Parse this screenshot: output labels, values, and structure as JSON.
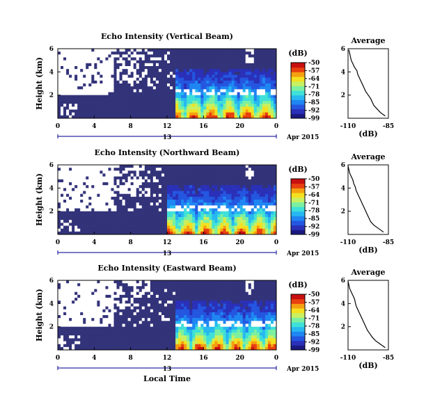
{
  "figure": {
    "x_axis_title": "Local Time",
    "date_label": "Apr 2015",
    "date_day": "13",
    "colorbar_unit": "(dB)"
  },
  "colors": {
    "background": "#ffffff",
    "no_echo": "#33337a",
    "colormap": [
      "#1a1a80",
      "#2a30b8",
      "#2456e0",
      "#1f86f2",
      "#27b8f0",
      "#3fe0d8",
      "#7cf0a0",
      "#c8f060",
      "#f4e020",
      "#f4a010",
      "#e84010",
      "#c81010"
    ]
  },
  "chart_data": [
    {
      "type": "heatmap",
      "title": "Echo Intensity (Vertical Beam)",
      "ylabel": "Height (km)",
      "xlabel": "",
      "x_ticks": [
        "0",
        "4",
        "8",
        "12",
        "16",
        "20",
        "0"
      ],
      "x_range_hours": [
        0,
        24
      ],
      "y_ticks": [
        "6",
        "4",
        "2"
      ],
      "y_range_km": [
        0,
        6
      ],
      "colorbar_ticks": [
        "-50",
        "-57",
        "-64",
        "-71",
        "-78",
        "-85",
        "-92",
        "-99"
      ],
      "colorbar_range_db": [
        -99,
        -50
      ],
      "description": "clear (white) gaps at upper heights before ~13 LT; enhanced echo (green/yellow) below 2 km after 13 LT",
      "profile": {
        "title": "Average",
        "xlabel": "(dB)",
        "x_ticks": [
          "-110",
          "-85"
        ],
        "x_range_db": [
          -110,
          -85
        ],
        "y_ticks": [
          "6",
          "4",
          "2"
        ],
        "y_range_km": [
          0,
          6
        ],
        "height_km": [
          0.2,
          0.5,
          0.8,
          1.1,
          1.4,
          1.7,
          2.0,
          2.3,
          2.6,
          2.9,
          3.2,
          3.5,
          3.8,
          4.1,
          4.4,
          4.7,
          5.0,
          5.3,
          5.6,
          5.9
        ],
        "value_db": [
          -87,
          -90,
          -92,
          -94,
          -95,
          -96,
          -97.5,
          -99,
          -100,
          -101,
          -102,
          -103,
          -104,
          -104.5,
          -106,
          -107,
          -108,
          -108.5,
          -109,
          -109.5
        ]
      }
    },
    {
      "type": "heatmap",
      "title": "Echo Intensity (Northward Beam)",
      "ylabel": "Height (km)",
      "xlabel": "",
      "x_ticks": [
        "0",
        "4",
        "8",
        "12",
        "16",
        "20",
        "0"
      ],
      "x_range_hours": [
        0,
        24
      ],
      "y_ticks": [
        "6",
        "4",
        "2"
      ],
      "y_range_km": [
        0,
        6
      ],
      "colorbar_ticks": [
        "-50",
        "-57",
        "-64",
        "-71",
        "-78",
        "-85",
        "-92",
        "-99"
      ],
      "colorbar_range_db": [
        -99,
        -50
      ],
      "description": "clear (white) gaps at upper heights before ~12 LT; enhanced echo (green/yellow) below 2 km after 12 LT",
      "profile": {
        "title": "Average",
        "xlabel": "(dB)",
        "x_ticks": [
          "-110",
          "-85"
        ],
        "x_range_db": [
          -110,
          -85
        ],
        "y_ticks": [
          "6",
          "4",
          "2"
        ],
        "y_range_km": [
          0,
          6
        ],
        "height_km": [
          0.2,
          0.5,
          0.8,
          1.1,
          1.4,
          1.7,
          2.0,
          2.3,
          2.6,
          2.9,
          3.2,
          3.5,
          3.8,
          4.1,
          4.4,
          4.7,
          5.0,
          5.3,
          5.6,
          5.9
        ],
        "value_db": [
          -88,
          -91,
          -94,
          -96,
          -97,
          -98,
          -99,
          -100,
          -101,
          -102,
          -103,
          -104,
          -105,
          -105.5,
          -106.5,
          -107,
          -108,
          -109,
          -109.5,
          -110
        ]
      }
    },
    {
      "type": "heatmap",
      "title": "Echo Intensity (Eastward Beam)",
      "ylabel": "Height (km)",
      "xlabel": "Local Time",
      "x_ticks": [
        "0",
        "4",
        "8",
        "12",
        "16",
        "20",
        "0"
      ],
      "x_range_hours": [
        0,
        24
      ],
      "y_ticks": [
        "6",
        "4",
        "2"
      ],
      "y_range_km": [
        0,
        6
      ],
      "colorbar_ticks": [
        "-50",
        "-57",
        "-64",
        "-71",
        "-78",
        "-85",
        "-92",
        "-99"
      ],
      "colorbar_range_db": [
        -99,
        -50
      ],
      "description": "clear (white) gaps at upper heights before ~13 LT; enhanced echo (green/yellow) below 2 km after 13 LT",
      "profile": {
        "title": "Average",
        "xlabel": "(dB)",
        "x_ticks": [
          "-110",
          "-85"
        ],
        "x_range_db": [
          -110,
          -85
        ],
        "y_ticks": [
          "6",
          "4",
          "2"
        ],
        "y_range_km": [
          0,
          6
        ],
        "height_km": [
          0.2,
          0.5,
          0.8,
          1.1,
          1.4,
          1.7,
          2.0,
          2.3,
          2.6,
          2.9,
          3.2,
          3.5,
          3.8,
          4.1,
          4.4,
          4.7,
          5.0,
          5.3,
          5.6,
          5.9
        ],
        "value_db": [
          -87,
          -90,
          -93,
          -95,
          -96.5,
          -98,
          -99,
          -100,
          -101,
          -102,
          -103,
          -104,
          -105,
          -105.5,
          -106,
          -107,
          -108,
          -109,
          -109.5,
          -110
        ]
      }
    }
  ]
}
